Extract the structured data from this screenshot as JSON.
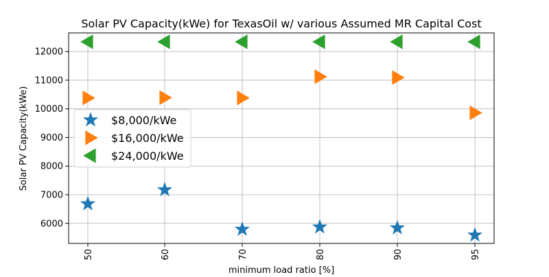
{
  "chart_data": {
    "type": "scatter",
    "title": "Solar PV Capacity(kWe) for TexasOil w/ various Assumed MR Capital Cost",
    "xlabel": "minimum load ratio [%]",
    "ylabel": "Solar PV Capacity(kWe)",
    "categories": [
      "50",
      "60",
      "70",
      "80",
      "90",
      "95"
    ],
    "yticks": [
      "6000",
      "7000",
      "8000",
      "9000",
      "10000",
      "11000",
      "12000"
    ],
    "ylim": [
      5300,
      12650
    ],
    "grid": true,
    "legend_position": "center-left",
    "series": [
      {
        "name": "$8,000/kWe",
        "marker": "star",
        "color": "#1f77b4",
        "values": [
          6680,
          7170,
          5790,
          5870,
          5840,
          5590
        ]
      },
      {
        "name": "$16,000/kWe",
        "marker": "triangle-right",
        "color": "#ff7f0e",
        "values": [
          10380,
          10390,
          10380,
          11120,
          11090,
          9860
        ]
      },
      {
        "name": "$24,000/kWe",
        "marker": "triangle-left",
        "color": "#2ca02c",
        "values": [
          12340,
          12340,
          12340,
          12340,
          12340,
          12340
        ]
      }
    ]
  }
}
